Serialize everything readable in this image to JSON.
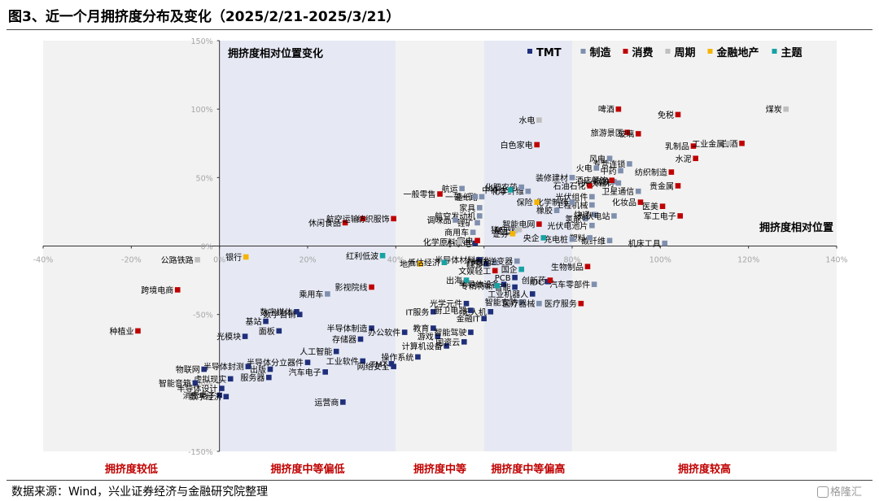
{
  "figure": {
    "title": "图3、近一个月拥挤度分布及变化（2025/2/21-2025/3/21）",
    "source": "数据来源：Wind，兴业证券经济与金融研究院整理",
    "watermark": "格隆汇"
  },
  "chart_data": {
    "type": "scatter",
    "corner_label": "拥挤度相对位置变化",
    "xlabel": "拥挤度相对位置",
    "xlim": [
      -40,
      140
    ],
    "ylim": [
      -150,
      150
    ],
    "xticks": [
      "-40%",
      "-20%",
      "0%",
      "20%",
      "40%",
      "60%",
      "80%",
      "100%",
      "120%",
      "140%"
    ],
    "xtick_values": [
      -40,
      -20,
      0,
      20,
      40,
      60,
      80,
      100,
      120,
      140
    ],
    "yticks": [
      "150%",
      "100%",
      "50%",
      "0%",
      "-50%",
      "-100%",
      "-150%"
    ],
    "ytick_values": [
      150,
      100,
      50,
      0,
      -50,
      -100,
      -150
    ],
    "zones": [
      {
        "label": "拥挤度较低",
        "x": [
          -40,
          0
        ],
        "color": "#f2f2f2"
      },
      {
        "label": "拥挤度中等偏低",
        "x": [
          0,
          40
        ],
        "color": "#e6e9f4"
      },
      {
        "label": "拥挤度中等",
        "x": [
          40,
          60
        ],
        "color": "#f2f2f2"
      },
      {
        "label": "拥挤度中等偏高",
        "x": [
          60,
          80
        ],
        "color": "#e6e9f4"
      },
      {
        "label": "拥挤度较高",
        "x": [
          80,
          140
        ],
        "color": "#f2f2f2"
      }
    ],
    "legend_position": "top-right",
    "colors": {
      "TMT": "#1f2f7a",
      "制造": "#7f8fae",
      "消费": "#c00000",
      "周期": "#bfbfbf",
      "金融地产": "#f5b400",
      "主题": "#17a2a4"
    },
    "series": [
      {
        "name": "TMT",
        "points": [
          {
            "label": "数字媒体",
            "x": 17.5,
            "y": -48
          },
          {
            "label": "基站",
            "x": 10.5,
            "y": -55
          },
          {
            "label": "数字营销",
            "x": 18.2,
            "y": -50
          },
          {
            "label": "面板",
            "x": 13.5,
            "y": -62
          },
          {
            "label": "光模块",
            "x": 5.8,
            "y": -66
          },
          {
            "label": "半导体封测",
            "x": 6.5,
            "y": -88
          },
          {
            "label": "出版",
            "x": 11.5,
            "y": -90
          },
          {
            "label": "虚拟现实",
            "x": 2.5,
            "y": -97
          },
          {
            "label": "服务器",
            "x": 11.2,
            "y": -96
          },
          {
            "label": "智能音箱",
            "x": -5.5,
            "y": -100
          },
          {
            "label": "物联网",
            "x": -3.5,
            "y": -90
          },
          {
            "label": "半导体设计",
            "x": 0.5,
            "y": -104
          },
          {
            "label": "消费电子",
            "x": 0.0,
            "y": -109
          },
          {
            "label": "数字经济",
            "x": 1.5,
            "y": -110
          },
          {
            "label": "半导体分立器件",
            "x": 20.0,
            "y": -85
          },
          {
            "label": "人工智能",
            "x": 26.5,
            "y": -77
          },
          {
            "label": "汽车电子",
            "x": 24.0,
            "y": -92
          },
          {
            "label": "运营商",
            "x": 28.0,
            "y": -114
          },
          {
            "label": "工业软件",
            "x": 32.5,
            "y": -84
          },
          {
            "label": "存储器",
            "x": 32.0,
            "y": -68
          },
          {
            "label": "半导体制造",
            "x": 34.5,
            "y": -60
          },
          {
            "label": "网络安全",
            "x": 39.5,
            "y": -88
          },
          {
            "label": "TMT",
            "x": 39.0,
            "y": -86
          },
          {
            "label": "办公软件",
            "x": 42.0,
            "y": -63
          },
          {
            "label": "操作系统",
            "x": 45.0,
            "y": -81
          },
          {
            "label": "IT服务",
            "x": 48.5,
            "y": -48
          },
          {
            "label": "教育",
            "x": 48.5,
            "y": -60
          },
          {
            "label": "游戏",
            "x": 49.5,
            "y": -66
          },
          {
            "label": "计算机设备",
            "x": 51.5,
            "y": -73
          },
          {
            "label": "智能驾驶",
            "x": 57.0,
            "y": -63
          },
          {
            "label": "国资云",
            "x": 55.5,
            "y": -70
          },
          {
            "label": "光学元件",
            "x": 56.0,
            "y": -42
          },
          {
            "label": "厨卫电器",
            "x": 57.0,
            "y": -47
          },
          {
            "label": "金融IT",
            "x": 60.0,
            "y": -53
          },
          {
            "label": "无人机",
            "x": 61.5,
            "y": -48
          },
          {
            "label": "半导体材料",
            "x": 59.0,
            "y": -10
          },
          {
            "label": "LED",
            "x": 60.5,
            "y": -13
          },
          {
            "label": "半导体设备",
            "x": 64.5,
            "y": -28
          },
          {
            "label": "智能",
            "x": 67.0,
            "y": -30
          },
          {
            "label": "PCB",
            "x": 67.0,
            "y": -23
          },
          {
            "label": "IDC",
            "x": 74.5,
            "y": -26
          },
          {
            "label": "工业机器人",
            "x": 71.0,
            "y": -35
          },
          {
            "label": "小家电",
            "x": 58.0,
            "y": 2
          }
        ]
      },
      {
        "name": "制造",
        "points": [
          {
            "label": "乘用车",
            "x": 24.5,
            "y": -35
          },
          {
            "label": "锂电池",
            "x": 62.5,
            "y": -12
          },
          {
            "label": "光伏逆变器",
            "x": 67.5,
            "y": -11
          },
          {
            "label": "智能安防",
            "x": 68.5,
            "y": -41
          },
          {
            "label": "医疗器械",
            "x": 72.5,
            "y": -42
          },
          {
            "label": "锂矿",
            "x": 58.5,
            "y": 17
          },
          {
            "label": "航空发动机",
            "x": 59.0,
            "y": 22
          },
          {
            "label": "一带一路",
            "x": 59.5,
            "y": 36
          },
          {
            "label": "造纸",
            "x": 58.0,
            "y": 36
          },
          {
            "label": "家具",
            "x": 59.0,
            "y": 28
          },
          {
            "label": "调味品",
            "x": 53.5,
            "y": 19
          },
          {
            "label": "商用车",
            "x": 57.5,
            "y": 10
          },
          {
            "label": "航运",
            "x": 55.0,
            "y": 42
          },
          {
            "label": "机床工具",
            "x": 101.0,
            "y": 2
          },
          {
            "label": "碳纤维",
            "x": 88.5,
            "y": 4
          },
          {
            "label": "塑料",
            "x": 84.0,
            "y": 6
          },
          {
            "label": "充电桩",
            "x": 80.0,
            "y": 5
          },
          {
            "label": "光伏电池片",
            "x": 84.5,
            "y": 15
          },
          {
            "label": "氢能",
            "x": 83.0,
            "y": 20
          },
          {
            "label": "快递",
            "x": 85.0,
            "y": 23
          },
          {
            "label": "光伏电站",
            "x": 89.5,
            "y": 22
          },
          {
            "label": "工程机械",
            "x": 84.5,
            "y": 30
          },
          {
            "label": "卫星通信",
            "x": 95.0,
            "y": 40
          },
          {
            "label": "光伏辅材",
            "x": 90.5,
            "y": 46
          },
          {
            "label": "光伏组件",
            "x": 84.5,
            "y": 36
          },
          {
            "label": "钢铁",
            "x": 89.5,
            "y": 47
          },
          {
            "label": "专营连锁",
            "x": 93.0,
            "y": 60
          },
          {
            "label": "风电",
            "x": 88.5,
            "y": 64
          },
          {
            "label": "火电",
            "x": 85.5,
            "y": 57
          },
          {
            "label": "中药",
            "x": 91.0,
            "y": 55
          },
          {
            "label": "汽车零部件",
            "x": 85.0,
            "y": -28
          },
          {
            "label": "橡胶",
            "x": 76.5,
            "y": 26
          },
          {
            "label": "装修建材",
            "x": 80.0,
            "y": 50
          },
          {
            "label": "化学纤维",
            "x": 70.0,
            "y": 40
          },
          {
            "label": "化肥农药",
            "x": 68.5,
            "y": 43
          },
          {
            "label": "化学制药",
            "x": 80.0,
            "y": 32
          }
        ]
      },
      {
        "name": "消费",
        "points": [
          {
            "label": "种植业",
            "x": -18.5,
            "y": -62
          },
          {
            "label": "跨境电商",
            "x": -9.5,
            "y": -32
          },
          {
            "label": "休闲食品",
            "x": 28.5,
            "y": 17
          },
          {
            "label": "航空运输",
            "x": 32.5,
            "y": 20
          },
          {
            "label": "纺织服饰",
            "x": 39.5,
            "y": 20
          },
          {
            "label": "影视院线",
            "x": 34.5,
            "y": -30
          },
          {
            "label": "一般零售",
            "x": 50.0,
            "y": 38
          },
          {
            "label": "家电",
            "x": 58.5,
            "y": 4
          },
          {
            "label": "文娱轻工",
            "x": 62.5,
            "y": -18
          },
          {
            "label": "白色家电",
            "x": 72.0,
            "y": 74
          },
          {
            "label": "智能电网",
            "x": 72.5,
            "y": 16
          },
          {
            "label": "生物制品",
            "x": 83.5,
            "y": -15
          },
          {
            "label": "医疗服务",
            "x": 82.0,
            "y": -42
          },
          {
            "label": "创新药",
            "x": 75.0,
            "y": -25
          },
          {
            "label": "啤酒",
            "x": 90.5,
            "y": 100
          },
          {
            "label": "旅游景区",
            "x": 92.5,
            "y": 83
          },
          {
            "label": "玻璃",
            "x": 95.0,
            "y": 82
          },
          {
            "label": "免税",
            "x": 104.0,
            "y": 96
          },
          {
            "label": "白酒",
            "x": 118.5,
            "y": 75
          },
          {
            "label": "水泥",
            "x": 108.0,
            "y": 64
          },
          {
            "label": "乳制品",
            "x": 107.5,
            "y": 73
          },
          {
            "label": "纺织制造",
            "x": 102.5,
            "y": 54
          },
          {
            "label": "贵金属",
            "x": 104.0,
            "y": 44
          },
          {
            "label": "化妆品",
            "x": 95.5,
            "y": 32
          },
          {
            "label": "医美",
            "x": 100.5,
            "y": 29
          },
          {
            "label": "军工电子",
            "x": 104.5,
            "y": 22
          },
          {
            "label": "石油石化",
            "x": 84.0,
            "y": 44
          },
          {
            "label": "酒店餐饮",
            "x": 89.0,
            "y": 48
          }
        ]
      },
      {
        "name": "周期",
        "points": [
          {
            "label": "公路铁路",
            "x": -5.0,
            "y": -10
          },
          {
            "label": "水电",
            "x": 72.5,
            "y": 92
          },
          {
            "label": "工业金属",
            "x": 115.5,
            "y": 75
          },
          {
            "label": "煤炭",
            "x": 128.5,
            "y": 100
          },
          {
            "label": "化学原料",
            "x": 54.5,
            "y": 3
          },
          {
            "label": "稀土",
            "x": 67.0,
            "y": 11
          },
          {
            "label": "猪产业",
            "x": 68.0,
            "y": 12
          }
        ]
      },
      {
        "name": "金融地产",
        "points": [
          {
            "label": "银行",
            "x": 6.0,
            "y": -8
          },
          {
            "label": "地产",
            "x": 45.5,
            "y": -13
          },
          {
            "label": "证券",
            "x": 66.5,
            "y": 9
          },
          {
            "label": "保险",
            "x": 72.0,
            "y": 32
          }
        ]
      },
      {
        "name": "主题",
        "points": [
          {
            "label": "红利低波",
            "x": 37.0,
            "y": -7
          },
          {
            "label": "低估经济",
            "x": 51.0,
            "y": -12
          },
          {
            "label": "出海",
            "x": 56.0,
            "y": -25
          },
          {
            "label": "专精特新",
            "x": 63.0,
            "y": -29
          },
          {
            "label": "央企",
            "x": 73.5,
            "y": 6
          },
          {
            "label": "国企",
            "x": 68.5,
            "y": -17
          },
          {
            "label": "中特估",
            "x": 66.0,
            "y": 41
          }
        ]
      }
    ],
    "label_overrides": {
      "gap_labels": [
        "半导体材料",
        "全A",
        "光纤光缆",
        "家用",
        "调味品",
        "食品",
        "航空发动机",
        "元件",
        "装饰",
        "工业母机"
      ]
    }
  }
}
